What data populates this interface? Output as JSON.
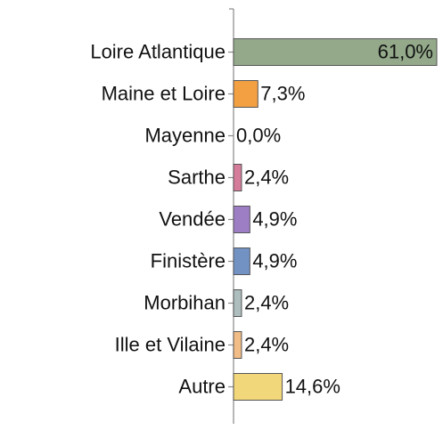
{
  "chart_data": {
    "type": "hbar",
    "categories": [
      "Loire Atlantique",
      "Maine et Loire",
      "Mayenne",
      "Sarthe",
      "Vendée",
      "Finistère",
      "Morbihan",
      "Ille et Vilaine",
      "Autre"
    ],
    "values": [
      61.0,
      7.3,
      0.0,
      2.4,
      4.9,
      4.9,
      2.4,
      2.4,
      14.6
    ],
    "value_labels": [
      "61,0%",
      "7,3%",
      "0,0%",
      "2,4%",
      "4,9%",
      "4,9%",
      "2,4%",
      "2,4%",
      "14,6%"
    ],
    "colors": [
      "#93a98a",
      "#f3a043",
      "#cccccc",
      "#d47c9a",
      "#9d7dc4",
      "#7292c4",
      "#aebdbd",
      "#f2bc86",
      "#f2d77a"
    ],
    "xlim": [
      0,
      61
    ]
  }
}
